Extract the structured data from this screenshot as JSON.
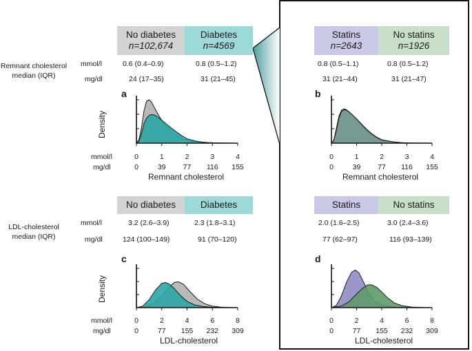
{
  "colors": {
    "no_diabetes": "#d3d3d3",
    "diabetes": "#9ed9d9",
    "statins": "#c9c8e6",
    "no_statins": "#c8dfc8",
    "diabetes_curve": "#2ca6a4",
    "no_diabetes_curve": "#b5b5b5",
    "statins_curve": "#8f8cc4",
    "no_statins_curve": "#5f9a6a"
  },
  "row_units": {
    "mmol": "mmol/l",
    "mg": "mg/dl"
  },
  "side_labels": {
    "remnant": [
      "Remnant cholesterol",
      "median (IQR)"
    ],
    "ldl": [
      "LDL-cholesterol",
      "median (IQR)"
    ]
  },
  "remnant_section": {
    "left": {
      "groups": [
        {
          "name": "No diabetes",
          "n": "n=102,674",
          "mmol": "0.6 (0.4–0.9)",
          "mg": "24 (17–35)"
        },
        {
          "name": "Diabetes",
          "n": "n=4569",
          "mmol": "0.8 (0.5–1.2)",
          "mg": "31 (21–45)"
        }
      ]
    },
    "right": {
      "groups": [
        {
          "name": "Statins",
          "n": "n=2643",
          "mmol": "0.8 (0.5–1.1)",
          "mg": "31 (21–44)"
        },
        {
          "name": "No statins",
          "n": "n=1926",
          "mmol": "0.8 (0.5–1.2)",
          "mg": "31 (21–47)"
        }
      ]
    }
  },
  "ldl_section": {
    "left": {
      "groups": [
        {
          "name": "No diabetes",
          "mmol": "3.2 (2.6–3.9)",
          "mg": "124 (100–149)"
        },
        {
          "name": "Diabetes",
          "mmol": "2.3 (1.8–3.1)",
          "mg": "91 (70–120)"
        }
      ]
    },
    "right": {
      "groups": [
        {
          "name": "Statins",
          "mmol": "2.0 (1.6–2.5)",
          "mg": "77 (62–97)"
        },
        {
          "name": "No statins",
          "mmol": "3.0 (2.4–3.6)",
          "mg": "116 (93–139)"
        }
      ]
    }
  },
  "chart_data": [
    {
      "panel": "a",
      "type": "area",
      "ylabel": "Density",
      "xlabel": "Remnant cholesterol",
      "xlim": [
        0,
        4
      ],
      "x_ticks_mmol": [
        "0",
        "1",
        "2",
        "3",
        "4"
      ],
      "x_ticks_mg": [
        "0",
        "39",
        "77",
        "116",
        "155"
      ],
      "series": [
        {
          "name": "No diabetes",
          "x": [
            0,
            0.1,
            0.2,
            0.3,
            0.4,
            0.5,
            0.6,
            0.8,
            1.0,
            1.2,
            1.5,
            1.8,
            2.2,
            2.6,
            3.0,
            3.5,
            4.0
          ],
          "y": [
            0,
            0.08,
            0.35,
            0.75,
            0.97,
            1.0,
            0.94,
            0.72,
            0.52,
            0.37,
            0.2,
            0.1,
            0.04,
            0.015,
            0.006,
            0.002,
            0
          ]
        },
        {
          "name": "Diabetes",
          "x": [
            0,
            0.1,
            0.2,
            0.3,
            0.4,
            0.5,
            0.6,
            0.7,
            0.8,
            1.0,
            1.2,
            1.4,
            1.6,
            1.8,
            2.0,
            2.4,
            2.8,
            3.2,
            3.6,
            4.0
          ],
          "y": [
            0,
            0.05,
            0.22,
            0.45,
            0.58,
            0.64,
            0.66,
            0.65,
            0.62,
            0.53,
            0.43,
            0.34,
            0.25,
            0.17,
            0.1,
            0.04,
            0.015,
            0.006,
            0.002,
            0
          ]
        }
      ]
    },
    {
      "panel": "b",
      "type": "area",
      "xlabel": "Remnant cholesterol",
      "xlim": [
        0,
        4
      ],
      "x_ticks_mmol": [
        "0",
        "1",
        "2",
        "3",
        "4"
      ],
      "x_ticks_mg": [
        "0",
        "39",
        "77",
        "116",
        "155"
      ],
      "series": [
        {
          "name": "Statins",
          "x": [
            0,
            0.1,
            0.2,
            0.3,
            0.4,
            0.5,
            0.6,
            0.8,
            1.0,
            1.2,
            1.4,
            1.6,
            1.8,
            2.0,
            2.4,
            2.8,
            3.2,
            4.0
          ],
          "y": [
            0,
            0.08,
            0.35,
            0.62,
            0.76,
            0.79,
            0.77,
            0.67,
            0.55,
            0.42,
            0.3,
            0.2,
            0.12,
            0.07,
            0.03,
            0.01,
            0.004,
            0
          ]
        },
        {
          "name": "No statins",
          "x": [
            0,
            0.1,
            0.2,
            0.3,
            0.4,
            0.5,
            0.6,
            0.8,
            1.0,
            1.2,
            1.4,
            1.6,
            1.8,
            2.0,
            2.4,
            2.8,
            3.2,
            4.0
          ],
          "y": [
            0,
            0.07,
            0.3,
            0.58,
            0.73,
            0.77,
            0.76,
            0.67,
            0.56,
            0.44,
            0.32,
            0.22,
            0.14,
            0.08,
            0.035,
            0.012,
            0.004,
            0
          ]
        }
      ]
    },
    {
      "panel": "c",
      "type": "area",
      "ylabel": "Density",
      "xlabel": "LDL-cholesterol",
      "xlim": [
        0,
        8
      ],
      "x_ticks_mmol": [
        "0",
        "2",
        "4",
        "6",
        "8"
      ],
      "x_ticks_mg": [
        "0",
        "77",
        "155",
        "232",
        "309"
      ],
      "series": [
        {
          "name": "No diabetes",
          "x": [
            0,
            0.8,
            1.4,
            2.0,
            2.5,
            3.0,
            3.3,
            3.7,
            4.2,
            4.8,
            5.4,
            6.0,
            6.6,
            7.2,
            8.0
          ],
          "y": [
            0,
            0.03,
            0.12,
            0.3,
            0.5,
            0.64,
            0.66,
            0.6,
            0.42,
            0.22,
            0.1,
            0.04,
            0.015,
            0.005,
            0
          ]
        },
        {
          "name": "Diabetes",
          "x": [
            0,
            0.5,
            1.0,
            1.5,
            2.0,
            2.3,
            2.6,
            3.0,
            3.5,
            4.0,
            4.6,
            5.2,
            6.0,
            7.0,
            8.0
          ],
          "y": [
            0,
            0.04,
            0.2,
            0.45,
            0.62,
            0.64,
            0.6,
            0.48,
            0.3,
            0.16,
            0.07,
            0.03,
            0.01,
            0.003,
            0
          ]
        }
      ]
    },
    {
      "panel": "d",
      "type": "area",
      "xlabel": "LDL-cholesterol",
      "xlim": [
        0,
        8
      ],
      "x_ticks_mmol": [
        "0",
        "2",
        "4",
        "6",
        "8"
      ],
      "x_ticks_mg": [
        "0",
        "77",
        "155",
        "232",
        "309"
      ],
      "series": [
        {
          "name": "Statins",
          "x": [
            0,
            0.4,
            0.8,
            1.2,
            1.6,
            1.9,
            2.2,
            2.6,
            3.0,
            3.5,
            4.0,
            4.6,
            5.4,
            6.5,
            8.0
          ],
          "y": [
            0,
            0.06,
            0.3,
            0.65,
            0.9,
            0.96,
            0.88,
            0.62,
            0.36,
            0.16,
            0.07,
            0.025,
            0.008,
            0.002,
            0
          ]
        },
        {
          "name": "No statins",
          "x": [
            0,
            0.8,
            1.4,
            2.0,
            2.5,
            2.9,
            3.2,
            3.6,
            4.0,
            4.5,
            5.0,
            5.6,
            6.4,
            7.2,
            8.0
          ],
          "y": [
            0,
            0.04,
            0.15,
            0.35,
            0.5,
            0.58,
            0.58,
            0.52,
            0.4,
            0.24,
            0.12,
            0.05,
            0.015,
            0.004,
            0
          ]
        }
      ]
    }
  ]
}
